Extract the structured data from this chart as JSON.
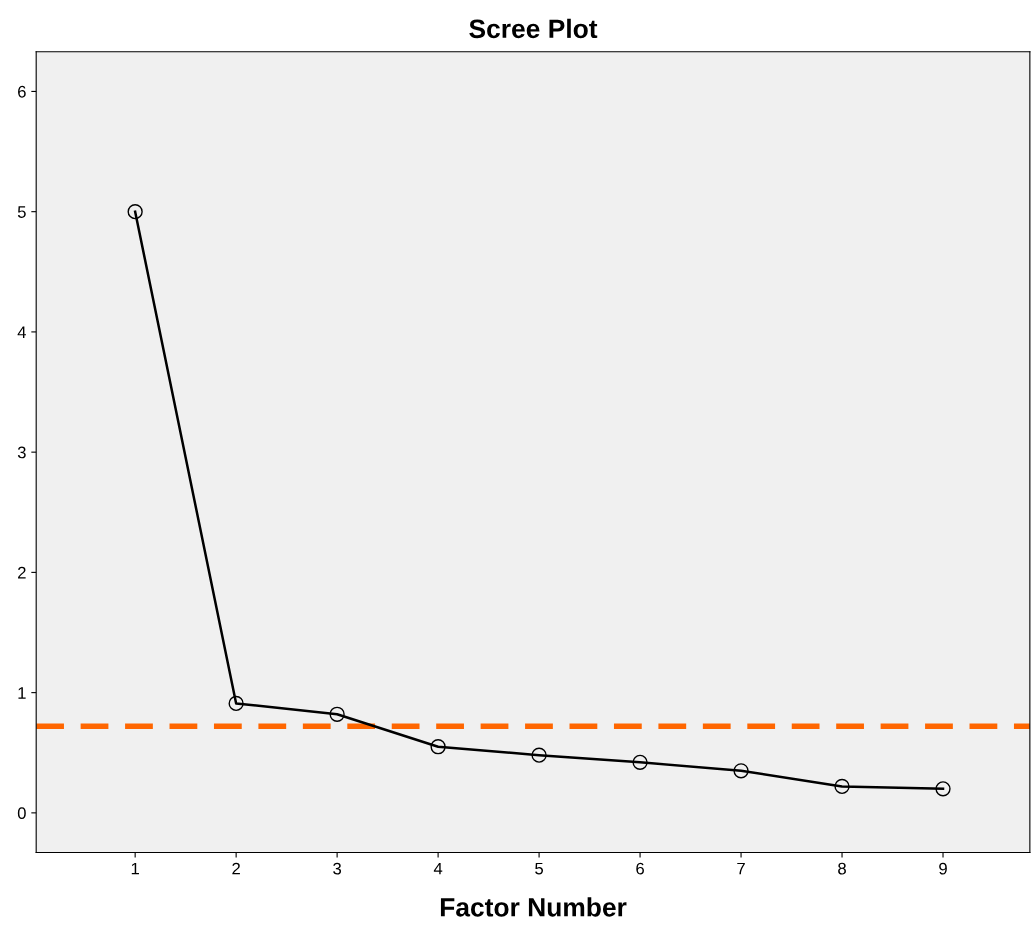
{
  "chart_data": {
    "type": "line",
    "title": "Scree Plot",
    "xlabel": "Factor Number",
    "x": [
      1,
      2,
      3,
      4,
      5,
      6,
      7,
      8,
      9
    ],
    "series": [
      {
        "color": "#000000",
        "values": [
          5.0,
          0.91,
          0.82,
          0.55,
          0.48,
          0.42,
          0.35,
          0.22,
          0.2
        ]
      }
    ],
    "xlim": [
      0.02,
      9.86
    ],
    "xticks": [
      1,
      2,
      3,
      4,
      5,
      6,
      7,
      8,
      9
    ],
    "ylim": [
      -0.33,
      6.33
    ],
    "yticks": [
      0,
      1,
      2,
      3,
      4,
      5,
      6
    ],
    "ref_lines": [
      {
        "axis": "y",
        "value": 0.72,
        "color": "#ff6600",
        "line_style": "dashed"
      }
    ],
    "marker": "circle",
    "line_style": "solid",
    "grid": false,
    "legend": false
  }
}
